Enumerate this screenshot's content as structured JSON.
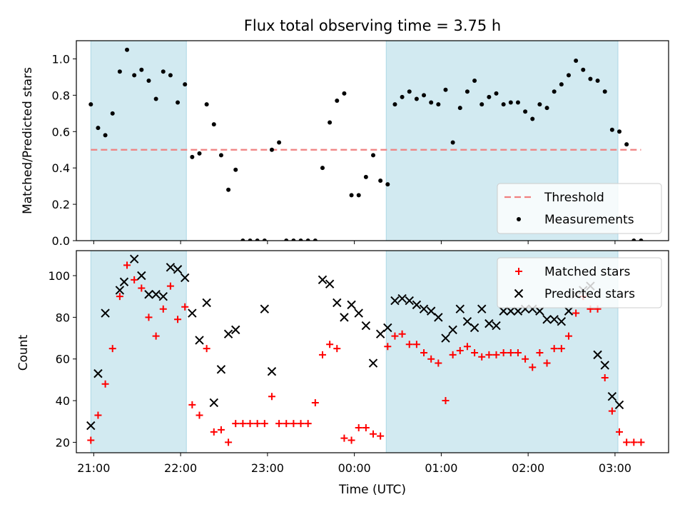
{
  "title": "Flux total observing time = 3.75 h",
  "colors": {
    "shade": "#add8e6",
    "threshold": "#f08080",
    "measurement": "#000000",
    "matched": "#ff0000",
    "predicted": "#000000"
  },
  "chart_data": [
    {
      "type": "scatter",
      "panel": "top",
      "ylabel": "Matched/Predicted stars",
      "ylim": [
        0,
        1.1
      ],
      "yticks": [
        0.0,
        0.2,
        0.4,
        0.6,
        0.8,
        1.0
      ],
      "ytick_labels": [
        "0.0",
        "0.2",
        "0.4",
        "0.6",
        "0.8",
        "1.0"
      ],
      "xlim": [
        "20:48",
        "03:37"
      ],
      "shaded_regions": [
        [
          "20:58",
          "22:04"
        ],
        [
          "00:22",
          "03:02"
        ]
      ],
      "threshold": {
        "name": "Threshold",
        "value": 0.5,
        "x_range": [
          "20:58",
          "03:18"
        ]
      },
      "legend": {
        "position": "lower-right",
        "entries": [
          "Threshold",
          "Measurements"
        ]
      },
      "series": [
        {
          "name": "Measurements",
          "x": [
            "20:58",
            "21:03",
            "21:08",
            "21:13",
            "21:18",
            "21:23",
            "21:28",
            "21:33",
            "21:38",
            "21:43",
            "21:48",
            "21:53",
            "21:58",
            "22:03",
            "22:08",
            "22:13",
            "22:18",
            "22:23",
            "22:28",
            "22:33",
            "22:38",
            "22:43",
            "22:48",
            "22:53",
            "22:58",
            "23:03",
            "23:08",
            "23:13",
            "23:18",
            "23:23",
            "23:28",
            "23:33",
            "23:38",
            "23:43",
            "23:48",
            "23:53",
            "23:58",
            "00:03",
            "00:08",
            "00:13",
            "00:18",
            "00:23",
            "00:28",
            "00:33",
            "00:38",
            "00:43",
            "00:48",
            "00:53",
            "00:58",
            "01:03",
            "01:08",
            "01:13",
            "01:18",
            "01:23",
            "01:28",
            "01:33",
            "01:38",
            "01:43",
            "01:48",
            "01:53",
            "01:58",
            "02:03",
            "02:08",
            "02:13",
            "02:18",
            "02:23",
            "02:28",
            "02:33",
            "02:38",
            "02:43",
            "02:48",
            "02:53",
            "02:58",
            "03:03",
            "03:08",
            "03:13",
            "03:18"
          ],
          "values": [
            0.75,
            0.62,
            0.58,
            0.7,
            0.93,
            1.05,
            0.91,
            0.94,
            0.88,
            0.78,
            0.93,
            0.91,
            0.76,
            0.86,
            0.46,
            0.48,
            0.75,
            0.64,
            0.47,
            0.28,
            0.39,
            0.0,
            0.0,
            0.0,
            0.0,
            0.5,
            0.54,
            0.0,
            0.0,
            0.0,
            0.0,
            0.0,
            0.4,
            0.65,
            0.77,
            0.81,
            0.25,
            0.25,
            0.35,
            0.47,
            0.33,
            0.31,
            0.75,
            0.79,
            0.82,
            0.78,
            0.8,
            0.76,
            0.75,
            0.83,
            0.54,
            0.73,
            0.82,
            0.88,
            0.75,
            0.79,
            0.81,
            0.75,
            0.76,
            0.76,
            0.71,
            0.67,
            0.75,
            0.73,
            0.82,
            0.86,
            0.91,
            0.99,
            0.94,
            0.89,
            0.88,
            0.82,
            0.61,
            0.6,
            0.53,
            0.0,
            0.0
          ]
        }
      ]
    },
    {
      "type": "scatter",
      "panel": "bottom",
      "ylabel": "Count",
      "xlabel": "Time (UTC)",
      "ylim": [
        15,
        112
      ],
      "yticks": [
        20,
        40,
        60,
        80,
        100
      ],
      "ytick_labels": [
        "20",
        "40",
        "60",
        "80",
        "100"
      ],
      "xlim": [
        "20:48",
        "03:37"
      ],
      "xticks": [
        "21:00",
        "22:00",
        "23:00",
        "00:00",
        "01:00",
        "02:00",
        "03:00"
      ],
      "shaded_regions": [
        [
          "20:58",
          "22:04"
        ],
        [
          "00:22",
          "03:02"
        ]
      ],
      "legend": {
        "position": "upper-right",
        "entries": [
          "Matched stars",
          "Predicted stars"
        ]
      },
      "series": [
        {
          "name": "Matched stars",
          "x": [
            "20:58",
            "21:03",
            "21:08",
            "21:13",
            "21:18",
            "21:23",
            "21:28",
            "21:33",
            "21:38",
            "21:43",
            "21:48",
            "21:53",
            "21:58",
            "22:03",
            "22:08",
            "22:13",
            "22:18",
            "22:23",
            "22:28",
            "22:33",
            "22:38",
            "22:43",
            "22:48",
            "22:53",
            "22:58",
            "23:03",
            "23:08",
            "23:13",
            "23:18",
            "23:23",
            "23:28",
            "23:33",
            "23:38",
            "23:43",
            "23:48",
            "23:53",
            "23:58",
            "00:03",
            "00:08",
            "00:13",
            "00:18",
            "00:23",
            "00:28",
            "00:33",
            "00:38",
            "00:43",
            "00:48",
            "00:53",
            "00:58",
            "01:03",
            "01:08",
            "01:13",
            "01:18",
            "01:23",
            "01:28",
            "01:33",
            "01:38",
            "01:43",
            "01:48",
            "01:53",
            "01:58",
            "02:03",
            "02:08",
            "02:13",
            "02:18",
            "02:23",
            "02:28",
            "02:33",
            "02:38",
            "02:43",
            "02:48",
            "02:53",
            "02:58",
            "03:03",
            "03:08",
            "03:13",
            "03:18"
          ],
          "values": [
            21,
            33,
            48,
            65,
            90,
            105,
            98,
            94,
            80,
            71,
            84,
            95,
            79,
            85,
            38,
            33,
            65,
            25,
            26,
            20,
            29,
            29,
            29,
            29,
            29,
            42,
            29,
            29,
            29,
            29,
            29,
            39,
            62,
            67,
            65,
            22,
            21,
            27,
            27,
            24,
            23,
            66,
            71,
            72,
            67,
            67,
            63,
            60,
            58,
            40,
            62,
            64,
            66,
            63,
            61,
            62,
            62,
            63,
            63,
            63,
            60,
            56,
            63,
            58,
            65,
            65,
            71,
            82,
            90,
            84,
            84,
            51,
            35,
            25,
            20,
            20,
            20
          ]
        },
        {
          "name": "Predicted stars",
          "x": [
            "20:58",
            "21:03",
            "21:08",
            "21:18",
            "21:21",
            "21:28",
            "21:33",
            "21:38",
            "21:43",
            "21:48",
            "21:53",
            "21:58",
            "22:03",
            "22:08",
            "22:13",
            "22:18",
            "22:23",
            "22:28",
            "22:33",
            "22:38",
            "22:58",
            "23:03",
            "23:38",
            "23:43",
            "23:48",
            "23:53",
            "23:58",
            "00:03",
            "00:08",
            "00:13",
            "00:18",
            "00:23",
            "00:28",
            "00:33",
            "00:38",
            "00:43",
            "00:48",
            "00:53",
            "00:58",
            "01:03",
            "01:08",
            "01:13",
            "01:18",
            "01:23",
            "01:28",
            "01:33",
            "01:38",
            "01:43",
            "01:48",
            "01:53",
            "01:58",
            "02:03",
            "02:08",
            "02:13",
            "02:18",
            "02:23",
            "02:28",
            "02:33",
            "02:38",
            "02:43",
            "02:48",
            "02:53",
            "02:58",
            "03:03"
          ],
          "values": [
            28,
            53,
            82,
            93,
            97,
            108,
            100,
            91,
            91,
            90,
            104,
            103,
            99,
            82,
            69,
            87,
            39,
            55,
            72,
            74,
            84,
            54,
            98,
            96,
            87,
            80,
            86,
            82,
            76,
            58,
            72,
            75,
            88,
            89,
            88,
            86,
            84,
            83,
            80,
            70,
            74,
            84,
            78,
            75,
            84,
            77,
            76,
            83,
            83,
            83,
            84,
            84,
            83,
            79,
            79,
            78,
            83,
            91,
            93,
            95,
            62,
            57,
            42,
            38
          ]
        }
      ]
    }
  ]
}
